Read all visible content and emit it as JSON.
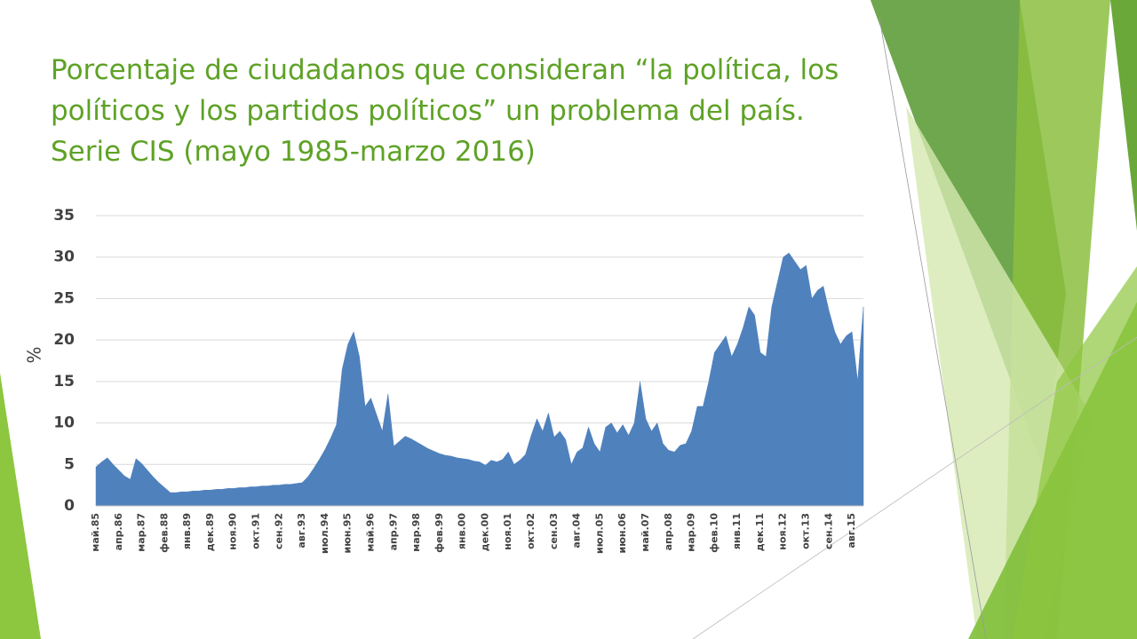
{
  "chart_data": {
    "type": "area",
    "title": "Porcentaje de ciudadanos que consideran “la política, los políticos y los partidos políticos” un problema del país. Serie CIS (mayo 1985-marzo 2016)",
    "y_label": "%",
    "color": "#4f81bd",
    "grid": true,
    "ylim": [
      0,
      35
    ],
    "yticks": [
      0,
      5,
      10,
      15,
      20,
      25,
      30,
      35
    ],
    "categories": [
      "май.85",
      null,
      null,
      null,
      "апр.86",
      null,
      null,
      null,
      "мар.87",
      null,
      null,
      null,
      "фев.88",
      null,
      null,
      null,
      "янв.89",
      null,
      null,
      null,
      "дек.89",
      null,
      null,
      null,
      "ноя.90",
      null,
      null,
      null,
      "окт.91",
      null,
      null,
      null,
      "сен.92",
      null,
      null,
      null,
      "авг.93",
      null,
      null,
      null,
      "июл.94",
      null,
      null,
      null,
      "июн.95",
      null,
      null,
      null,
      "май.96",
      null,
      null,
      null,
      "апр.97",
      null,
      null,
      null,
      "мар.98",
      null,
      null,
      null,
      "фев.99",
      null,
      null,
      null,
      "янв.00",
      null,
      null,
      null,
      "дек.00",
      null,
      null,
      null,
      "ноя.01",
      null,
      null,
      null,
      "окт.02",
      null,
      null,
      null,
      "сен.03",
      null,
      null,
      null,
      "авг.04",
      null,
      null,
      null,
      "июл.05",
      null,
      null,
      null,
      "июн.06",
      null,
      null,
      null,
      "май.07",
      null,
      null,
      null,
      "апр.08",
      null,
      null,
      null,
      "мар.09",
      null,
      null,
      null,
      "фев.10",
      null,
      null,
      null,
      "янв.11",
      null,
      null,
      null,
      "дек.11",
      null,
      null,
      null,
      "ноя.12",
      null,
      null,
      null,
      "окт.13",
      null,
      null,
      null,
      "сен.14",
      null,
      null,
      null,
      "авг.15",
      null,
      null
    ],
    "values": [
      4.7,
      5.3,
      5.8,
      5.0,
      4.3,
      3.6,
      3.2,
      5.7,
      5.1,
      4.3,
      3.5,
      2.8,
      2.2,
      1.6,
      1.6,
      1.7,
      1.7,
      1.8,
      1.8,
      1.9,
      1.9,
      2.0,
      2.0,
      2.1,
      2.1,
      2.2,
      2.2,
      2.3,
      2.3,
      2.4,
      2.4,
      2.5,
      2.5,
      2.6,
      2.6,
      2.7,
      2.8,
      3.5,
      4.5,
      5.6,
      6.8,
      8.2,
      9.8,
      16.5,
      19.5,
      21.0,
      18.0,
      12.0,
      13.0,
      11.0,
      9.0,
      13.5,
      7.2,
      7.8,
      8.4,
      8.1,
      7.7,
      7.3,
      6.9,
      6.6,
      6.3,
      6.1,
      6.0,
      5.8,
      5.7,
      5.6,
      5.4,
      5.3,
      4.9,
      5.5,
      5.3,
      5.6,
      6.5,
      5.0,
      5.5,
      6.2,
      8.5,
      10.5,
      9.0,
      11.2,
      8.3,
      9.0,
      8.0,
      5.0,
      6.5,
      7.0,
      9.5,
      7.5,
      6.5,
      9.5,
      10.0,
      8.8,
      9.8,
      8.5,
      10.0,
      15.0,
      10.5,
      9.0,
      10.0,
      7.5,
      6.7,
      6.5,
      7.3,
      7.5,
      9.0,
      12.0,
      12.0,
      15.0,
      18.5,
      19.5,
      20.5,
      18.0,
      19.5,
      21.5,
      24.0,
      23.0,
      18.5,
      18.0,
      24.0,
      27.0,
      30.0,
      30.5,
      29.5,
      28.5,
      29.0,
      25.0,
      26.0,
      26.5,
      23.5,
      21.0,
      19.5,
      20.5,
      21.0,
      15.0,
      24.0
    ]
  }
}
